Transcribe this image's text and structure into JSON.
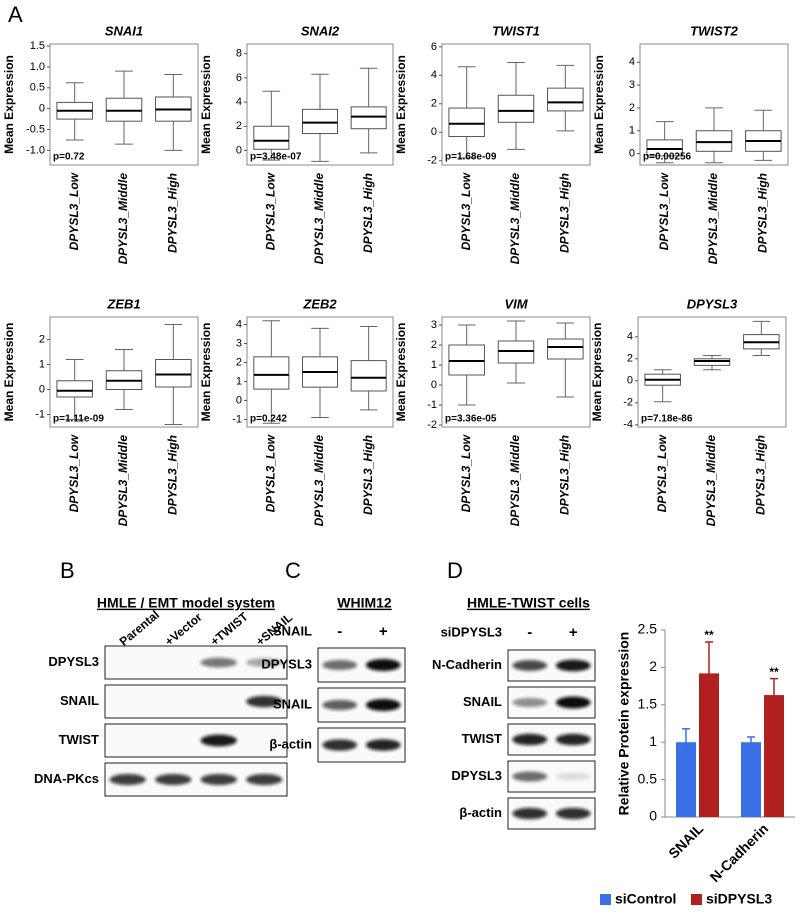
{
  "panel_labels": [
    "A",
    "B",
    "C",
    "D"
  ],
  "chart_data": [
    {
      "type": "box",
      "title": "SNAI1",
      "ylabel": "Mean Expression",
      "categories": [
        "DPYSL3_Low",
        "DPYSL3_Middle",
        "DPYSL3_High"
      ],
      "boxes": [
        {
          "min": -0.75,
          "q1": -0.25,
          "median": -0.05,
          "q3": 0.15,
          "max": 0.62
        },
        {
          "min": -0.85,
          "q1": -0.3,
          "median": -0.05,
          "q3": 0.25,
          "max": 0.9
        },
        {
          "min": -1.0,
          "q1": -0.3,
          "median": -0.02,
          "q3": 0.28,
          "max": 0.82
        }
      ],
      "annotation": "p=0.72",
      "ylim": [
        -1.35,
        1.55
      ],
      "yticks": [
        {
          "value": -1,
          "label": "-1.0"
        },
        -0.5,
        0,
        0.5,
        {
          "value": 1,
          "label": "1.0"
        },
        1.5
      ]
    },
    {
      "type": "box",
      "title": "SNAI2",
      "ylabel": "Mean Expression",
      "categories": [
        "DPYSL3_Low",
        "DPYSL3_Middle",
        "DPYSL3_High"
      ],
      "boxes": [
        {
          "min": -0.8,
          "q1": 0.1,
          "median": 0.8,
          "q3": 2.0,
          "max": 4.9
        },
        {
          "min": -0.9,
          "q1": 1.4,
          "median": 2.3,
          "q3": 3.4,
          "max": 6.3
        },
        {
          "min": -0.2,
          "q1": 1.8,
          "median": 2.8,
          "q3": 3.6,
          "max": 6.8
        }
      ],
      "annotation": "p=3.48e-07",
      "ylim": [
        -1.2,
        8.8
      ],
      "yticks": [
        0,
        2,
        4,
        6,
        8
      ]
    },
    {
      "type": "box",
      "title": "TWIST1",
      "ylabel": "Mean Expression",
      "categories": [
        "DPYSL3_Low",
        "DPYSL3_Middle",
        "DPYSL3_High"
      ],
      "boxes": [
        {
          "min": -1.8,
          "q1": -0.3,
          "median": 0.6,
          "q3": 1.7,
          "max": 4.6
        },
        {
          "min": -1.2,
          "q1": 0.7,
          "median": 1.5,
          "q3": 2.6,
          "max": 4.9
        },
        {
          "min": 0.1,
          "q1": 1.5,
          "median": 2.1,
          "q3": 3.1,
          "max": 4.7
        }
      ],
      "annotation": "p=1.68e-09",
      "ylim": [
        -2.3,
        6.2
      ],
      "yticks": [
        -2,
        0,
        2,
        4,
        6
      ]
    },
    {
      "type": "box",
      "title": "TWIST2",
      "ylabel": "Mean Expression",
      "categories": [
        "DPYSL3_Low",
        "DPYSL3_Middle",
        "DPYSL3_High"
      ],
      "boxes": [
        {
          "min": -0.4,
          "q1": -0.1,
          "median": 0.2,
          "q3": 0.6,
          "max": 1.4
        },
        {
          "min": -0.4,
          "q1": 0.1,
          "median": 0.5,
          "q3": 1.0,
          "max": 2.0
        },
        {
          "min": -0.3,
          "q1": 0.1,
          "median": 0.55,
          "q3": 1.0,
          "max": 1.9
        }
      ],
      "annotation": "p=0.00256",
      "ylim": [
        -0.5,
        4.8
      ],
      "yticks": [
        0,
        1,
        2,
        3,
        4
      ]
    },
    {
      "type": "box",
      "title": "ZEB1",
      "ylabel": "Mean Expression",
      "categories": [
        "DPYSL3_Low",
        "DPYSL3_Middle",
        "DPYSL3_High"
      ],
      "boxes": [
        {
          "min": -1.2,
          "q1": -0.3,
          "median": -0.05,
          "q3": 0.35,
          "max": 1.2
        },
        {
          "min": -0.8,
          "q1": 0.0,
          "median": 0.35,
          "q3": 0.75,
          "max": 1.6
        },
        {
          "min": -1.4,
          "q1": 0.1,
          "median": 0.6,
          "q3": 1.2,
          "max": 2.6
        }
      ],
      "annotation": "p=1.11e-09",
      "ylim": [
        -1.5,
        2.9
      ],
      "yticks": [
        -1,
        0,
        1,
        2
      ]
    },
    {
      "type": "box",
      "title": "ZEB2",
      "ylabel": "Mean Expression",
      "categories": [
        "DPYSL3_Low",
        "DPYSL3_Middle",
        "DPYSL3_High"
      ],
      "boxes": [
        {
          "min": -1.2,
          "q1": 0.6,
          "median": 1.35,
          "q3": 2.3,
          "max": 4.2
        },
        {
          "min": -0.9,
          "q1": 0.7,
          "median": 1.5,
          "q3": 2.3,
          "max": 3.8
        },
        {
          "min": -0.5,
          "q1": 0.5,
          "median": 1.2,
          "q3": 2.1,
          "max": 3.9
        }
      ],
      "annotation": "p=0.242",
      "ylim": [
        -1.4,
        4.4
      ],
      "yticks": [
        -1,
        0,
        1,
        2,
        3,
        4
      ]
    },
    {
      "type": "box",
      "title": "VIM",
      "ylabel": "Mean Expression",
      "categories": [
        "DPYSL3_Low",
        "DPYSL3_Middle",
        "DPYSL3_High"
      ],
      "boxes": [
        {
          "min": -1.0,
          "q1": 0.5,
          "median": 1.2,
          "q3": 2.0,
          "max": 3.0
        },
        {
          "min": 0.1,
          "q1": 1.1,
          "median": 1.7,
          "q3": 2.2,
          "max": 3.2
        },
        {
          "min": -0.6,
          "q1": 1.3,
          "median": 1.9,
          "q3": 2.3,
          "max": 3.1
        }
      ],
      "annotation": "p=3.36e-05",
      "ylim": [
        -2.1,
        3.4
      ],
      "yticks": [
        -2,
        -1,
        0,
        1,
        2,
        3
      ]
    },
    {
      "type": "box",
      "title": "DPYSL3",
      "ylabel": "Mean Expression",
      "categories": [
        "DPYSL3_Low",
        "DPYSL3_Middle",
        "DPYSL3_High"
      ],
      "boxes": [
        {
          "min": -1.9,
          "q1": -0.4,
          "median": 0.1,
          "q3": 0.6,
          "max": 1.0
        },
        {
          "min": 1.0,
          "q1": 1.4,
          "median": 1.8,
          "q3": 2.0,
          "max": 2.3
        },
        {
          "min": 2.3,
          "q1": 2.9,
          "median": 3.5,
          "q3": 4.2,
          "max": 5.4
        }
      ],
      "annotation": "p=7.18e-86",
      "ylim": [
        -4.2,
        5.8
      ],
      "yticks": [
        -4,
        -2,
        0,
        2,
        4
      ]
    },
    {
      "type": "bar",
      "ylabel": "Relative Protein expression",
      "categories": [
        "SNAIL",
        "N-Cadherin"
      ],
      "series": [
        {
          "name": "siControl",
          "color": "#3b6fe6",
          "values": [
            1,
            1
          ],
          "errors": [
            0.18,
            0.07
          ]
        },
        {
          "name": "siDPYSL3",
          "color": "#b0201e",
          "values": [
            1.92,
            1.63
          ],
          "errors": [
            0.42,
            0.22
          ],
          "annotations": [
            "**",
            "**"
          ]
        }
      ],
      "ylim": [
        0,
        2.5
      ],
      "yticks": [
        0,
        0.5,
        1,
        1.5,
        2,
        2.5
      ],
      "legend": "bottom"
    }
  ],
  "blots": {
    "B": {
      "title": "HMLE / EMT model system",
      "lanes": [
        "Parental",
        "+Vector",
        "+TWIST",
        "+SNAIL"
      ],
      "rows": [
        "DPYSL3",
        "SNAIL",
        "TWIST",
        "DNA-PKcs"
      ]
    },
    "C": {
      "title": "WHIM12",
      "condition": "SNAIL",
      "lanes": [
        "-",
        "+"
      ],
      "rows": [
        "DPYSL3",
        "SNAIL",
        "β-actin"
      ]
    },
    "D": {
      "title": "HMLE-TWIST cells",
      "condition": "siDPYSL3",
      "lanes": [
        "-",
        "+"
      ],
      "rows": [
        "N-Cadherin",
        "SNAIL",
        "TWIST",
        "DPYSL3",
        "β-actin"
      ]
    }
  }
}
